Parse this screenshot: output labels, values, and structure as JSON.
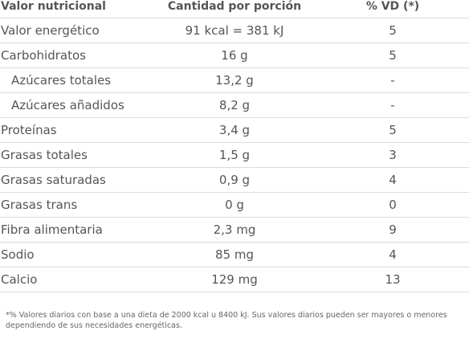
{
  "table": {
    "headers": {
      "name": "Valor nutricional",
      "amount": "Cantidad por porción",
      "vd": "% VD (*)"
    },
    "rows": [
      {
        "name": "Valor energético",
        "amount": "91 kcal = 381 kJ",
        "vd": "5",
        "sub": false
      },
      {
        "name": "Carbohidratos",
        "amount": "16 g",
        "vd": "5",
        "sub": false
      },
      {
        "name": "Azúcares totales",
        "amount": "13,2 g",
        "vd": "-",
        "sub": true
      },
      {
        "name": "Azúcares añadidos",
        "amount": "8,2 g",
        "vd": "-",
        "sub": true
      },
      {
        "name": "Proteínas",
        "amount": "3,4 g",
        "vd": "5",
        "sub": false
      },
      {
        "name": "Grasas totales",
        "amount": "1,5 g",
        "vd": "3",
        "sub": false
      },
      {
        "name": "Grasas saturadas",
        "amount": "0,9 g",
        "vd": "4",
        "sub": false
      },
      {
        "name": "Grasas trans",
        "amount": "0 g",
        "vd": "0",
        "sub": false
      },
      {
        "name": "Fibra alimentaria",
        "amount": "2,3 mg",
        "vd": "9",
        "sub": false
      },
      {
        "name": "Sodio",
        "amount": "85 mg",
        "vd": "4",
        "sub": false
      },
      {
        "name": "Calcio",
        "amount": "129 mg",
        "vd": "13",
        "sub": false
      }
    ]
  },
  "footnote": "*% Valores diarios con base a una dieta de 2000 kcal u 8400 kJ. Sus valores diarios pueden ser mayores o menores dependiendo de sus necesidades energéticas."
}
